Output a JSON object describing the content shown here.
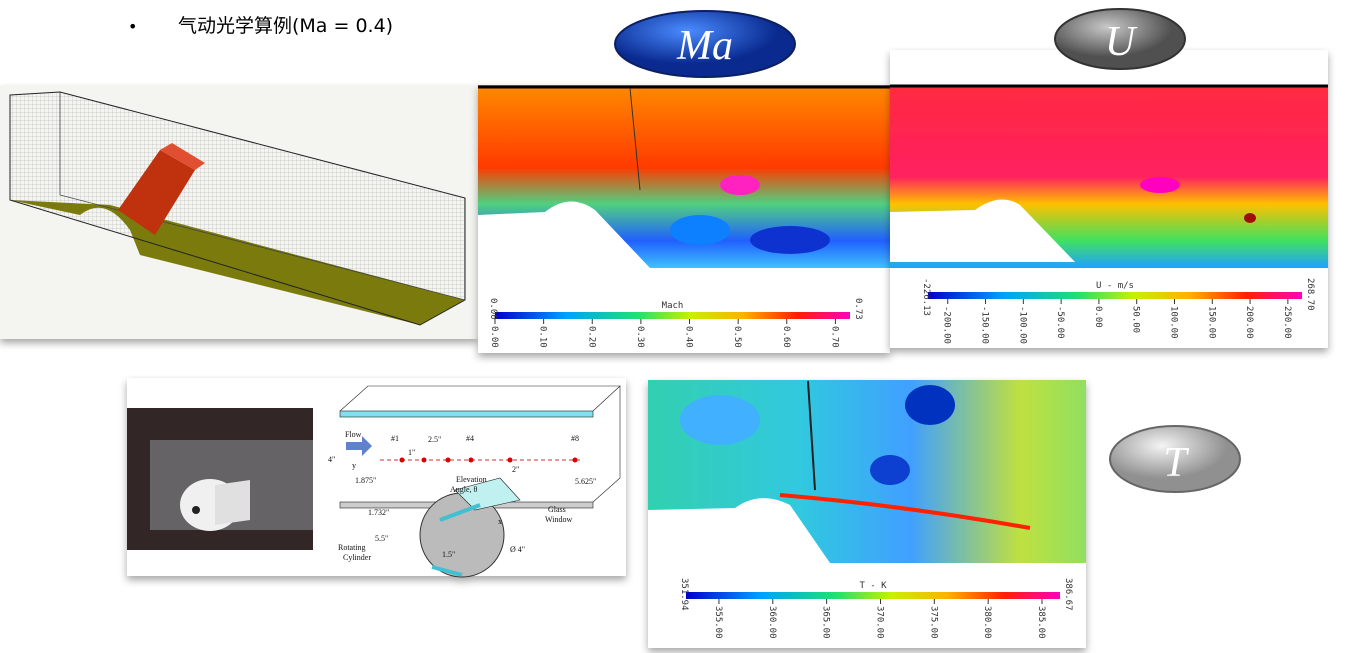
{
  "bullet": "气动光学算例(Ma = 0.4)",
  "badges": {
    "ma": "Ma",
    "u": "U",
    "t": "T"
  },
  "colorbars": [
    {
      "title": "Mach",
      "min": "0.00",
      "max": "0.73",
      "ticks": [
        "0.00",
        "0.10",
        "0.20",
        "0.30",
        "0.40",
        "0.50",
        "0.60",
        "0.70"
      ]
    },
    {
      "title": "U - m/s",
      "min": "-226.13",
      "max": "268.70",
      "ticks": [
        "-200.00",
        "-150.00",
        "-100.00",
        "-50.00",
        "0.00",
        "50.00",
        "100.00",
        "150.00",
        "200.00",
        "250.00"
      ]
    },
    {
      "title": "T - K",
      "min": "351.94",
      "max": "386.67",
      "ticks": [
        "355.00",
        "360.00",
        "365.00",
        "370.00",
        "375.00",
        "380.00",
        "385.00"
      ]
    }
  ],
  "diagram": {
    "flow": "Flow",
    "p1": "#1",
    "p4": "#4",
    "p8": "#8",
    "d25": "2.5\"",
    "d1": "1\"",
    "d2": "2\"",
    "h4": "4\"",
    "y": "y",
    "x": "x",
    "d1875": "1.875\"",
    "d5625": "5.625\"",
    "elev": "Elevation",
    "angle": "Angle, θ",
    "glass": "Glass",
    "window": "Window",
    "d1732": "1.732\"",
    "d55": "5.5\"",
    "d15": "1.5\"",
    "dia": "Ø 4\"",
    "rot": "Rotating",
    "cyl": "Cylinder"
  }
}
